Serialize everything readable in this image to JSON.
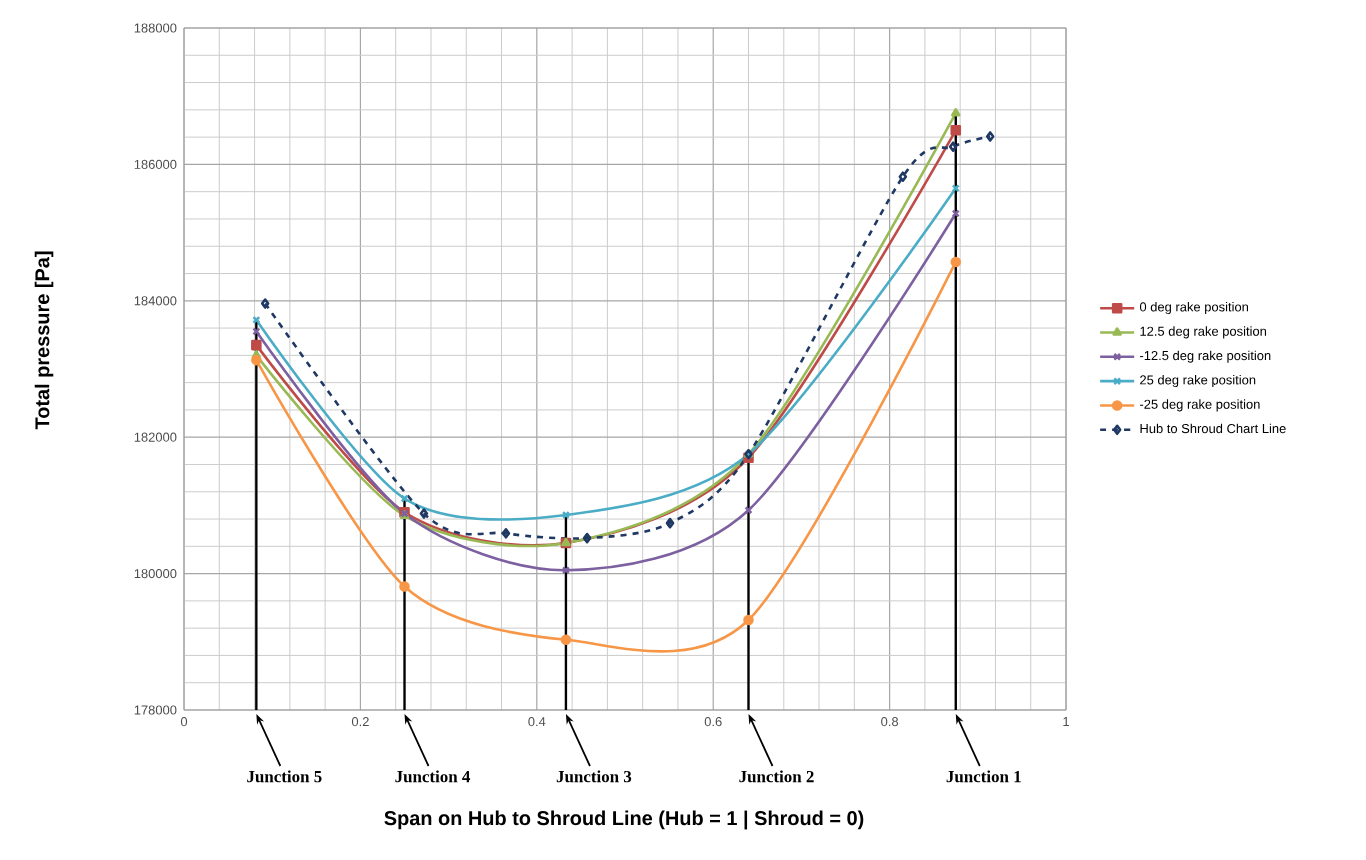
{
  "chart_data": {
    "type": "line",
    "xlabel": "Span on Hub to Shroud Line (Hub = 1 | Shroud = 0)",
    "ylabel": "Total pressure [Pa]",
    "xlim": [
      0,
      1
    ],
    "xticks": [
      0,
      0.2,
      0.4,
      0.6,
      0.8,
      1
    ],
    "ylim": [
      178000,
      188000
    ],
    "yticks": [
      178000,
      180000,
      182000,
      184000,
      186000,
      188000
    ],
    "grid": true,
    "legend": "right",
    "series": [
      {
        "name": "0 deg rake position",
        "color": "#be4b48",
        "marker": "square",
        "line_style": "solid",
        "x": [
          0.082,
          0.25,
          0.433,
          0.64,
          0.875
        ],
        "values": [
          183350,
          180900,
          180450,
          181700,
          186500
        ]
      },
      {
        "name": "12.5 deg rake position",
        "color": "#98b954",
        "marker": "triangle",
        "line_style": "solid",
        "x": [
          0.082,
          0.25,
          0.433,
          0.64,
          0.875
        ],
        "values": [
          183200,
          180850,
          180450,
          181750,
          186750
        ]
      },
      {
        "name": "-12.5 deg rake position",
        "color": "#7d60a0",
        "marker": "cross",
        "line_style": "solid",
        "x": [
          0.082,
          0.25,
          0.433,
          0.64,
          0.875
        ],
        "values": [
          183550,
          180880,
          180050,
          180930,
          185280
        ]
      },
      {
        "name": "25 deg rake position",
        "color": "#4bacc6",
        "marker": "cross",
        "line_style": "solid",
        "x": [
          0.082,
          0.25,
          0.433,
          0.64,
          0.875
        ],
        "values": [
          183720,
          181100,
          180860,
          181750,
          185650
        ]
      },
      {
        "name": "-25 deg rake position",
        "color": "#f79646",
        "marker": "circle",
        "line_style": "solid",
        "x": [
          0.082,
          0.25,
          0.433,
          0.64,
          0.875
        ],
        "values": [
          183130,
          179810,
          179030,
          179320,
          184570
        ]
      },
      {
        "name": "Hub to Shroud Chart Line",
        "color": "#1f3864",
        "marker": "diamond",
        "line_style": "dashed",
        "x": [
          0.092,
          0.272,
          0.365,
          0.457,
          0.551,
          0.64,
          0.815,
          0.872,
          0.914
        ],
        "values": [
          183960,
          180880,
          180590,
          180520,
          180740,
          181750,
          185820,
          186260,
          186410
        ]
      }
    ],
    "ref_lines": [
      {
        "axis": "x",
        "value": 0.082,
        "label": "Junction 5",
        "color": "#000000"
      },
      {
        "axis": "x",
        "value": 0.25,
        "label": "Junction 4",
        "color": "#000000"
      },
      {
        "axis": "x",
        "value": 0.433,
        "label": "Junction 3",
        "color": "#000000"
      },
      {
        "axis": "x",
        "value": 0.64,
        "label": "Junction 2",
        "color": "#000000"
      },
      {
        "axis": "x",
        "value": 0.875,
        "label": "Junction 1",
        "color": "#000000"
      }
    ]
  }
}
